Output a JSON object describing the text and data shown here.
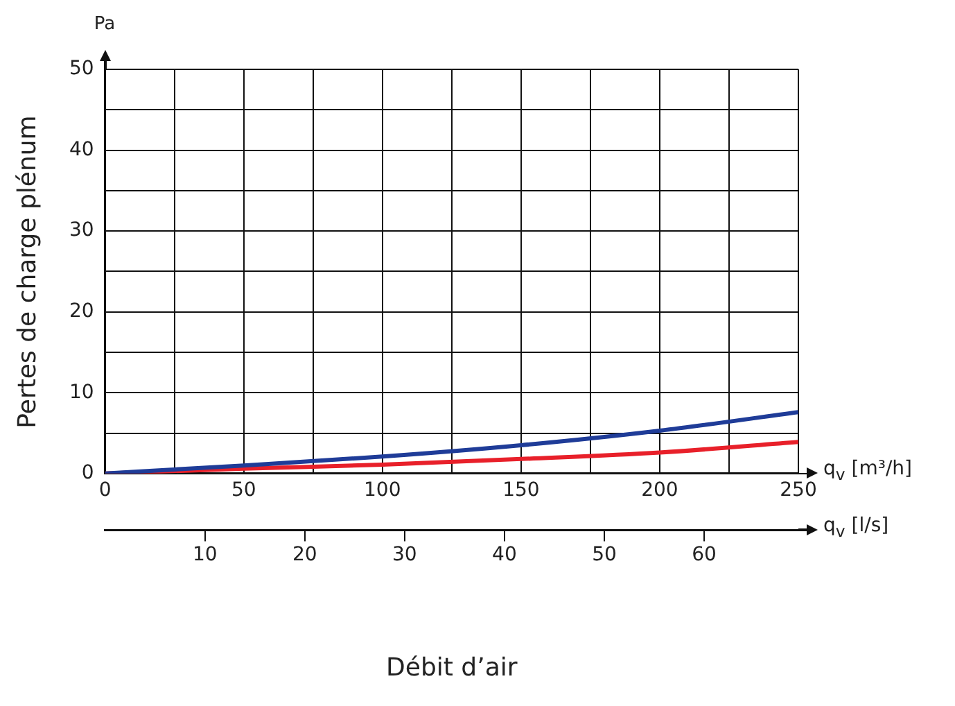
{
  "chart_data": {
    "type": "line",
    "xlabel": "q$_{v}$ [m³/h]",
    "x2label": "q$_{v}$ [l/s]",
    "ylabel": "Pertes de charge plénum",
    "annotations": [
      "Pa",
      "Débit d’air"
    ],
    "x": [
      0,
      50,
      100,
      150,
      200,
      250
    ],
    "series": [
      {
        "color": "#1f3c98",
        "values": [
          0,
          1.0,
          2.1,
          3.5,
          5.3,
          7.6
        ]
      },
      {
        "color": "#e8202a",
        "values": [
          0,
          0.6,
          1.1,
          1.8,
          2.6,
          3.9
        ]
      }
    ],
    "xlim": [
      0,
      250
    ],
    "xticks": [
      0,
      {
        "value": 25,
        "label": null
      },
      50,
      {
        "value": 75,
        "label": null
      },
      100,
      {
        "value": 125,
        "label": null
      },
      150,
      {
        "value": 175,
        "label": null
      },
      200,
      {
        "value": 225,
        "label": null
      },
      250
    ],
    "x2lim": [
      0,
      69.44
    ],
    "x2ticks": [
      10,
      20,
      30,
      40,
      50,
      60
    ],
    "ylim": [
      0,
      50
    ],
    "yticks": [
      0,
      {
        "value": 5,
        "label": null
      },
      10,
      {
        "value": 15,
        "label": null
      },
      20,
      {
        "value": 25,
        "label": null
      },
      30,
      {
        "value": 35,
        "label": null
      },
      40,
      {
        "value": 45,
        "label": null
      },
      50
    ],
    "grid": true,
    "legend": false
  }
}
